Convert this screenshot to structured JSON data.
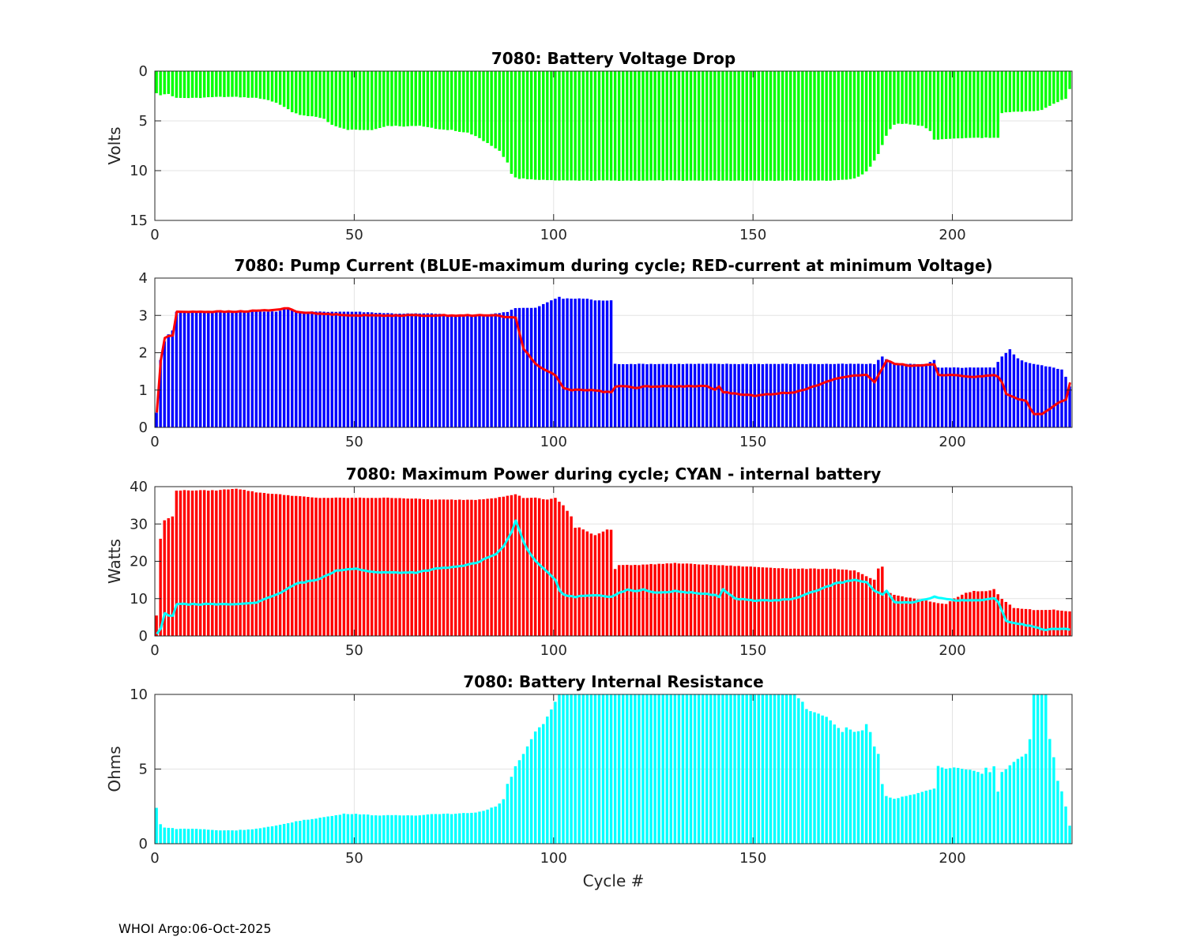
{
  "footer": "WHOI Argo:06-Oct-2025",
  "chart_data": [
    {
      "type": "bar",
      "title": "7080: Battery Voltage Drop",
      "xlabel": "",
      "ylabel": "Volts",
      "xlim": [
        0,
        230
      ],
      "ylim": [
        0,
        15
      ],
      "y_direction": "reversed",
      "xticks": [
        0,
        50,
        100,
        150,
        200
      ],
      "yticks": [
        0,
        5,
        10,
        15
      ],
      "grid": true,
      "legend": "none",
      "bar_color": "#00ff00",
      "x_values": "cycle numbers 0 to 229",
      "series": [
        {
          "x": [
            0,
            1,
            3,
            5,
            10,
            15,
            20,
            25,
            28,
            30,
            32,
            34,
            36,
            38,
            40,
            42,
            44,
            46,
            48,
            50,
            52,
            54,
            56,
            58,
            60,
            62,
            64,
            66,
            68,
            70,
            72,
            74,
            76,
            78,
            80,
            82,
            84,
            86,
            88,
            89,
            90,
            91,
            92,
            95,
            100,
            110,
            120,
            130,
            140,
            150,
            160,
            170,
            175,
            176,
            177,
            178,
            179,
            180,
            181,
            182,
            183,
            184,
            185,
            186,
            188,
            190,
            192,
            194,
            195,
            196,
            198,
            200,
            205,
            210,
            211,
            212,
            215,
            220,
            222,
            224,
            226,
            227,
            228,
            229
          ],
          "values": [
            2.2,
            2.4,
            2.3,
            2.7,
            2.7,
            2.6,
            2.6,
            2.7,
            2.9,
            3.2,
            3.6,
            4.1,
            4.4,
            4.5,
            4.6,
            4.8,
            5.4,
            5.7,
            5.9,
            5.9,
            5.9,
            5.9,
            5.7,
            5.5,
            5.5,
            5.6,
            5.5,
            5.5,
            5.6,
            5.8,
            5.9,
            5.9,
            6.1,
            6.2,
            6.5,
            7.0,
            7.5,
            8.0,
            9.2,
            10.3,
            10.7,
            10.8,
            10.8,
            10.9,
            11.0,
            11.0,
            11.0,
            11.0,
            11.0,
            11.0,
            11.0,
            11.0,
            10.8,
            10.6,
            10.4,
            10.1,
            9.6,
            9.0,
            8.3,
            7.4,
            6.5,
            5.8,
            5.4,
            5.3,
            5.3,
            5.4,
            5.5,
            6.0,
            6.9,
            6.9,
            6.8,
            6.8,
            6.7,
            6.7,
            6.7,
            4.2,
            4.1,
            4.0,
            3.9,
            3.5,
            3.1,
            2.9,
            2.8,
            1.8
          ]
        }
      ]
    },
    {
      "type": "bar",
      "title": "7080: Pump Current (BLUE-maximum during cycle; RED-current at minimum Voltage)",
      "xlabel": "",
      "ylabel": "",
      "xlim": [
        0,
        230
      ],
      "ylim": [
        0,
        4
      ],
      "xticks": [
        0,
        50,
        100,
        150,
        200
      ],
      "yticks": [
        0,
        1,
        2,
        3,
        4
      ],
      "grid": true,
      "legend": "none",
      "series": [
        {
          "name": "",
          "kind": "bar",
          "color": "#0000ff",
          "x": [
            0,
            1,
            2,
            3,
            4,
            5,
            6,
            10,
            20,
            30,
            33,
            35,
            40,
            50,
            60,
            70,
            75,
            80,
            85,
            88,
            90,
            92,
            95,
            98,
            100,
            101,
            102,
            103,
            105,
            108,
            110,
            112,
            113,
            114,
            115,
            116,
            120,
            130,
            140,
            150,
            160,
            170,
            180,
            182,
            185,
            190,
            193,
            195,
            196,
            198,
            200,
            205,
            210,
            211,
            212,
            213,
            214,
            215,
            216,
            218,
            220,
            225,
            227,
            228,
            229
          ],
          "values": [
            0.4,
            1.8,
            2.3,
            2.5,
            2.6,
            3.1,
            3.1,
            3.1,
            3.1,
            3.1,
            3.2,
            3.1,
            3.1,
            3.1,
            3.05,
            3.05,
            3.0,
            3.0,
            3.05,
            3.1,
            3.2,
            3.2,
            3.2,
            3.35,
            3.45,
            3.5,
            3.45,
            3.45,
            3.45,
            3.45,
            3.4,
            3.4,
            3.4,
            3.4,
            1.7,
            1.7,
            1.7,
            1.7,
            1.7,
            1.7,
            1.7,
            1.7,
            1.7,
            1.9,
            1.7,
            1.7,
            1.7,
            1.8,
            1.6,
            1.6,
            1.6,
            1.6,
            1.6,
            1.75,
            1.9,
            2.0,
            2.1,
            1.95,
            1.85,
            1.75,
            1.7,
            1.6,
            1.55,
            1.35,
            1.1
          ]
        },
        {
          "name": "",
          "kind": "line",
          "color": "#ff0000",
          "x": [
            0,
            1,
            2,
            3,
            4,
            5,
            6,
            10,
            20,
            30,
            33,
            35,
            40,
            50,
            60,
            70,
            80,
            85,
            88,
            89,
            90,
            91,
            92,
            95,
            98,
            100,
            102,
            104,
            105,
            110,
            112,
            114,
            115,
            118,
            120,
            122,
            125,
            130,
            138,
            140,
            141,
            142,
            145,
            150,
            155,
            160,
            165,
            170,
            175,
            178,
            180,
            182,
            183,
            185,
            190,
            195,
            196,
            198,
            200,
            205,
            210,
            211,
            212,
            213,
            215,
            218,
            220,
            222,
            224,
            226,
            227,
            228,
            229
          ],
          "values": [
            0.4,
            1.8,
            2.4,
            2.45,
            2.45,
            3.1,
            3.1,
            3.1,
            3.1,
            3.15,
            3.2,
            3.1,
            3.05,
            3.0,
            3.0,
            3.0,
            3.0,
            3.0,
            2.95,
            2.95,
            2.95,
            2.5,
            2.1,
            1.7,
            1.5,
            1.4,
            1.05,
            1.0,
            1.0,
            1.0,
            0.95,
            0.95,
            1.1,
            1.1,
            1.05,
            1.1,
            1.1,
            1.1,
            1.1,
            1.0,
            1.1,
            0.95,
            0.9,
            0.85,
            0.9,
            0.95,
            1.1,
            1.3,
            1.4,
            1.4,
            1.2,
            1.6,
            1.8,
            1.7,
            1.65,
            1.7,
            1.4,
            1.4,
            1.4,
            1.35,
            1.4,
            1.35,
            1.2,
            0.9,
            0.8,
            0.7,
            0.35,
            0.35,
            0.5,
            0.65,
            0.7,
            0.75,
            1.2
          ]
        }
      ]
    },
    {
      "type": "bar",
      "title": "7080: Maximum Power during cycle; CYAN - internal battery",
      "xlabel": "",
      "ylabel": "Watts",
      "xlim": [
        0,
        230
      ],
      "ylim": [
        0,
        40
      ],
      "xticks": [
        0,
        50,
        100,
        150,
        200
      ],
      "yticks": [
        0,
        10,
        20,
        30,
        40
      ],
      "grid": true,
      "legend": "none",
      "series": [
        {
          "name": "",
          "kind": "bar",
          "color": "#ff0000",
          "x": [
            0,
            1,
            2,
            3,
            4,
            5,
            6,
            10,
            15,
            20,
            25,
            30,
            35,
            40,
            50,
            60,
            70,
            80,
            85,
            88,
            90,
            92,
            95,
            98,
            100,
            102,
            104,
            105,
            106,
            108,
            110,
            112,
            113,
            114,
            115,
            116,
            120,
            130,
            140,
            150,
            160,
            170,
            175,
            178,
            180,
            181,
            182,
            183,
            185,
            190,
            195,
            198,
            200,
            203,
            205,
            208,
            210,
            212,
            215,
            220,
            225,
            229
          ],
          "values": [
            5.5,
            26,
            31,
            31.5,
            32,
            39,
            39,
            39,
            39,
            39.5,
            38.5,
            38,
            37.5,
            37,
            37,
            37,
            36.5,
            36.5,
            37,
            37.5,
            38,
            37,
            37,
            36.5,
            37,
            35,
            32,
            29,
            29,
            28,
            27,
            28,
            28.5,
            28.5,
            18,
            19,
            19,
            19.5,
            19,
            18.5,
            18,
            18,
            17.5,
            16,
            15,
            18,
            18.5,
            12,
            11,
            10,
            9,
            8.5,
            10,
            11.5,
            12,
            12,
            12.5,
            10,
            7.5,
            7,
            7,
            6.5
          ]
        },
        {
          "name": "",
          "kind": "line",
          "color": "#00ffff",
          "x": [
            0,
            1,
            2,
            3,
            4,
            5,
            6,
            10,
            20,
            25,
            30,
            35,
            40,
            45,
            50,
            55,
            60,
            65,
            70,
            75,
            80,
            83,
            85,
            86,
            87,
            88,
            89,
            90,
            91,
            92,
            93,
            95,
            98,
            100,
            101,
            102,
            105,
            110,
            114,
            115,
            118,
            120,
            122,
            125,
            130,
            135,
            140,
            141,
            142,
            145,
            150,
            155,
            160,
            165,
            170,
            175,
            178,
            180,
            182,
            183,
            185,
            188,
            190,
            195,
            200,
            205,
            210,
            211,
            212,
            213,
            215,
            220,
            223,
            225,
            228,
            229
          ],
          "values": [
            0.5,
            2,
            6,
            5.5,
            5.5,
            8.5,
            8.5,
            8.5,
            8.5,
            9,
            11,
            14,
            15,
            17.5,
            18,
            17,
            17,
            17,
            18,
            18.5,
            19.5,
            21,
            22,
            23,
            24,
            26,
            28,
            31,
            28,
            25,
            23,
            20,
            17,
            15,
            12,
            11,
            10.5,
            11,
            10.5,
            11,
            12.5,
            12,
            12.5,
            11.5,
            12,
            11.5,
            11,
            10.5,
            12.5,
            10,
            9.5,
            9.5,
            10,
            12,
            14,
            15,
            14.5,
            12,
            11,
            12,
            9,
            9,
            9,
            10.5,
            9.5,
            9.5,
            10,
            9,
            6.5,
            4,
            3.5,
            2.5,
            1.5,
            2,
            1.8,
            1.7
          ]
        }
      ]
    },
    {
      "type": "bar",
      "title": "7080: Battery Internal Resistance",
      "xlabel": "Cycle #",
      "ylabel": "Ohms",
      "xlim": [
        0,
        230
      ],
      "ylim": [
        0,
        10
      ],
      "xticks": [
        0,
        50,
        100,
        150,
        200
      ],
      "yticks": [
        0,
        5,
        10
      ],
      "grid": true,
      "legend": "none",
      "bar_color": "#00ffff",
      "series": [
        {
          "x": [
            0,
            1,
            2,
            5,
            10,
            15,
            20,
            25,
            30,
            35,
            40,
            45,
            47,
            50,
            55,
            60,
            65,
            70,
            75,
            80,
            82,
            85,
            86,
            87,
            88,
            89,
            90,
            91,
            92,
            93,
            94,
            95,
            96,
            97,
            98,
            99,
            100,
            101,
            102,
            110,
            120,
            130,
            140,
            150,
            160,
            162,
            163,
            165,
            168,
            170,
            172,
            173,
            175,
            177,
            178,
            179,
            180,
            181,
            182,
            183,
            185,
            188,
            190,
            195,
            196,
            198,
            200,
            205,
            207,
            208,
            209,
            210,
            211,
            212,
            213,
            215,
            218,
            219,
            220,
            221,
            222,
            223,
            224,
            225,
            226,
            227,
            228,
            229
          ],
          "values": [
            2.4,
            1.3,
            1.1,
            1.0,
            1.0,
            0.9,
            0.9,
            1.0,
            1.2,
            1.5,
            1.7,
            1.9,
            2.0,
            2.0,
            1.9,
            1.9,
            1.9,
            2.0,
            2.0,
            2.1,
            2.2,
            2.5,
            2.7,
            3.0,
            4.0,
            4.5,
            5.2,
            5.6,
            6.0,
            6.5,
            7.0,
            7.5,
            7.8,
            8.0,
            8.5,
            9.0,
            9.5,
            10.0,
            10.0,
            10.0,
            10.0,
            10.0,
            10.0,
            10.0,
            10.0,
            9.5,
            9.0,
            8.8,
            8.5,
            8.0,
            7.5,
            7.8,
            7.5,
            7.6,
            8.0,
            7.5,
            6.5,
            6.0,
            4.0,
            3.2,
            3.0,
            3.2,
            3.3,
            3.7,
            5.2,
            5.0,
            5.1,
            4.9,
            4.7,
            5.1,
            4.8,
            5.2,
            3.5,
            4.8,
            5.0,
            5.5,
            6.0,
            7.0,
            10.0,
            10.0,
            10.0,
            10.0,
            7.0,
            5.8,
            4.2,
            3.5,
            2.5,
            1.2
          ]
        }
      ]
    }
  ]
}
